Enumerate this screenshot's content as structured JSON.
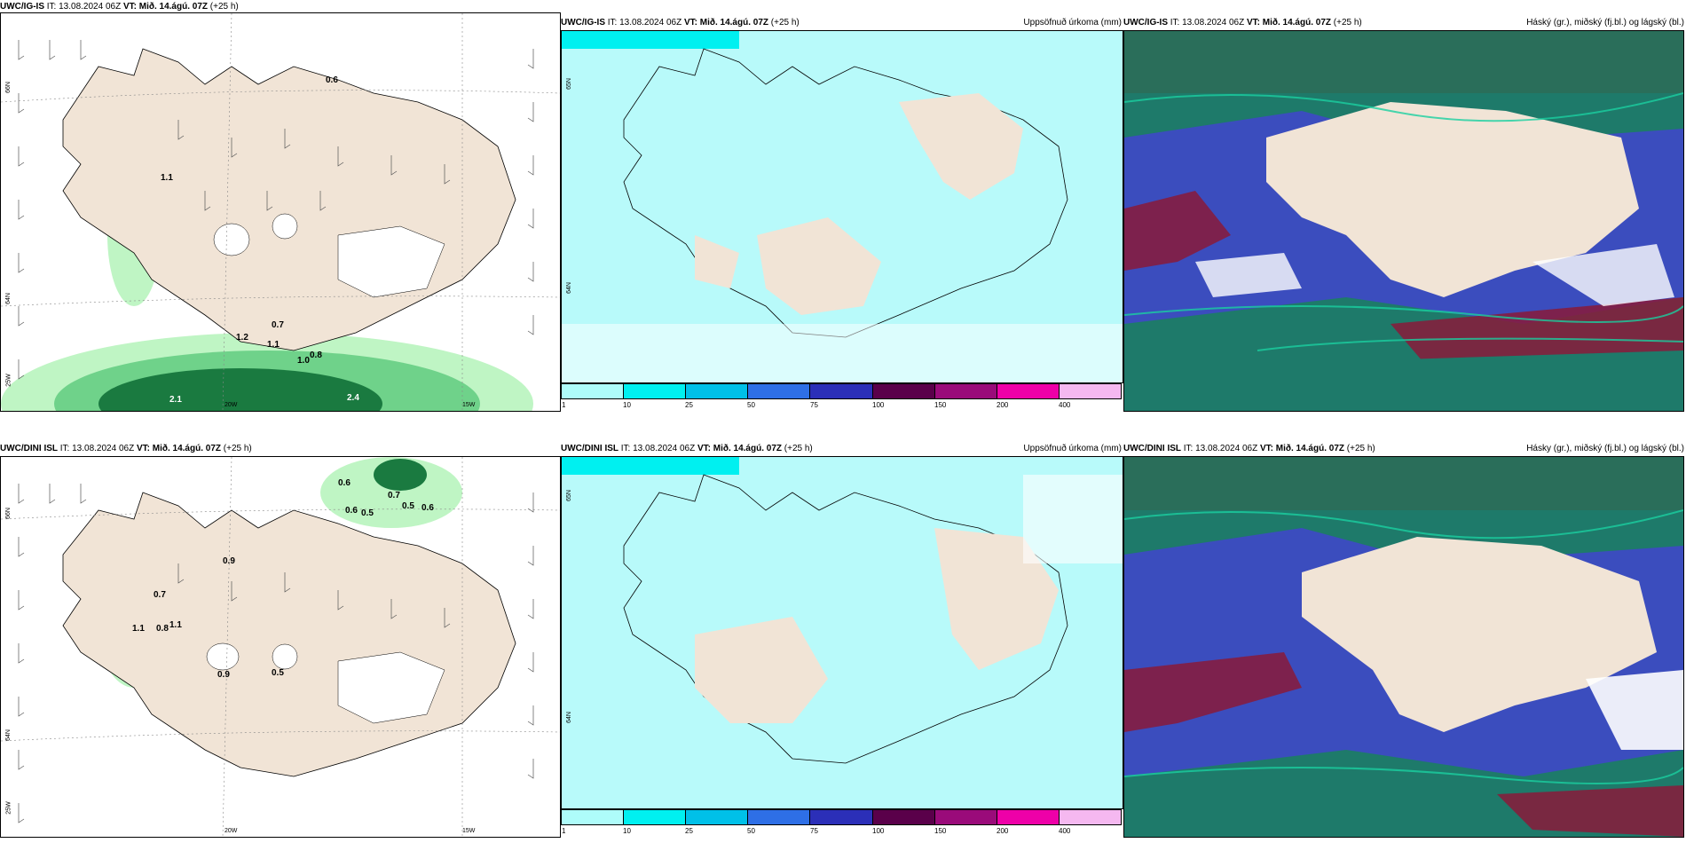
{
  "panels": [
    {
      "row": "top",
      "col": "left",
      "title_model": "UWC/IG-IS",
      "title_it": "IT: 13.08.2024 06Z",
      "title_vt": "VT: Mið. 14.ágú. 07Z",
      "title_lead": "(+25 h)",
      "title_right": "",
      "precip_labels": [
        "0.6",
        "1.1",
        "0.7",
        "1.2",
        "1.1",
        "0.8",
        "1.0",
        "2.1",
        "2.4"
      ],
      "grid_labels": [
        "66N",
        "64N",
        "25W",
        "20W",
        "15W"
      ]
    },
    {
      "row": "top",
      "col": "middle",
      "title_model": "UWC/IG-IS",
      "title_it": "IT: 13.08.2024 06Z",
      "title_vt": "VT: Mið. 14.ágú. 07Z",
      "title_lead": "(+25 h)",
      "title_right": "Uppsöfnuð úrkoma (mm)",
      "grid_labels": [
        "65N",
        "64N"
      ]
    },
    {
      "row": "top",
      "col": "right",
      "title_model": "UWC/IG-IS",
      "title_it": "IT: 13.08.2024 06Z",
      "title_vt": "VT: Mið. 14.ágú. 07Z",
      "title_lead": "(+25 h)",
      "title_right": "Háský (gr.), miðský (fj.bl.) og lágský (bl.)"
    },
    {
      "row": "bottom",
      "col": "left",
      "title_model": "UWC/DINI ISL",
      "title_it": "IT: 13.08.2024 06Z",
      "title_vt": "VT: Mið. 14.ágú. 07Z",
      "title_lead": "(+25 h)",
      "title_right": "",
      "precip_labels": [
        "0.6",
        "0.7",
        "0.6",
        "0.5",
        "0.5",
        "0.6",
        "0.9",
        "0.7",
        "1.1",
        "0.8",
        "1.1",
        "0.9",
        "0.5"
      ],
      "grid_labels": [
        "66N",
        "64N",
        "25W",
        "20W",
        "15W"
      ]
    },
    {
      "row": "bottom",
      "col": "middle",
      "title_model": "UWC/DINI ISL",
      "title_it": "IT: 13.08.2024 06Z",
      "title_vt": "VT: Mið. 14.ágú. 07Z",
      "title_lead": "(+25 h)",
      "title_right": "Uppsöfnuð úrkoma (mm)",
      "grid_labels": [
        "65N",
        "64N"
      ]
    },
    {
      "row": "bottom",
      "col": "right",
      "title_model": "UWC/DINI ISL",
      "title_it": "IT: 13.08.2024 06Z",
      "title_vt": "VT: Mið. 14.ágú. 07Z",
      "title_lead": "(+25 h)",
      "title_right": "Hásky (gr.), miðský (fj.bl.) og lágský (bl.)"
    }
  ],
  "colorbar": {
    "labels": [
      "1",
      "10",
      "25",
      "50",
      "75",
      "100",
      "150",
      "200",
      "400"
    ],
    "colors": [
      "#aefcfa",
      "#00f0f0",
      "#00c0e8",
      "#2e6fe6",
      "#2b2fb8",
      "#5a004a",
      "#9a0b7a",
      "#ee00a8",
      "#f5b8f0"
    ]
  },
  "colors": {
    "land": "#f1e4d6",
    "sea_precip_light": "#b8fafa",
    "precip_light_green": "#bff5c4",
    "precip_mid_green": "#6fd28a",
    "precip_dark_green": "#1a7a40",
    "cloud_low": "#3e48c8",
    "cloud_mid": "#1e7a6a",
    "cloud_high": "#8a1a3a"
  }
}
